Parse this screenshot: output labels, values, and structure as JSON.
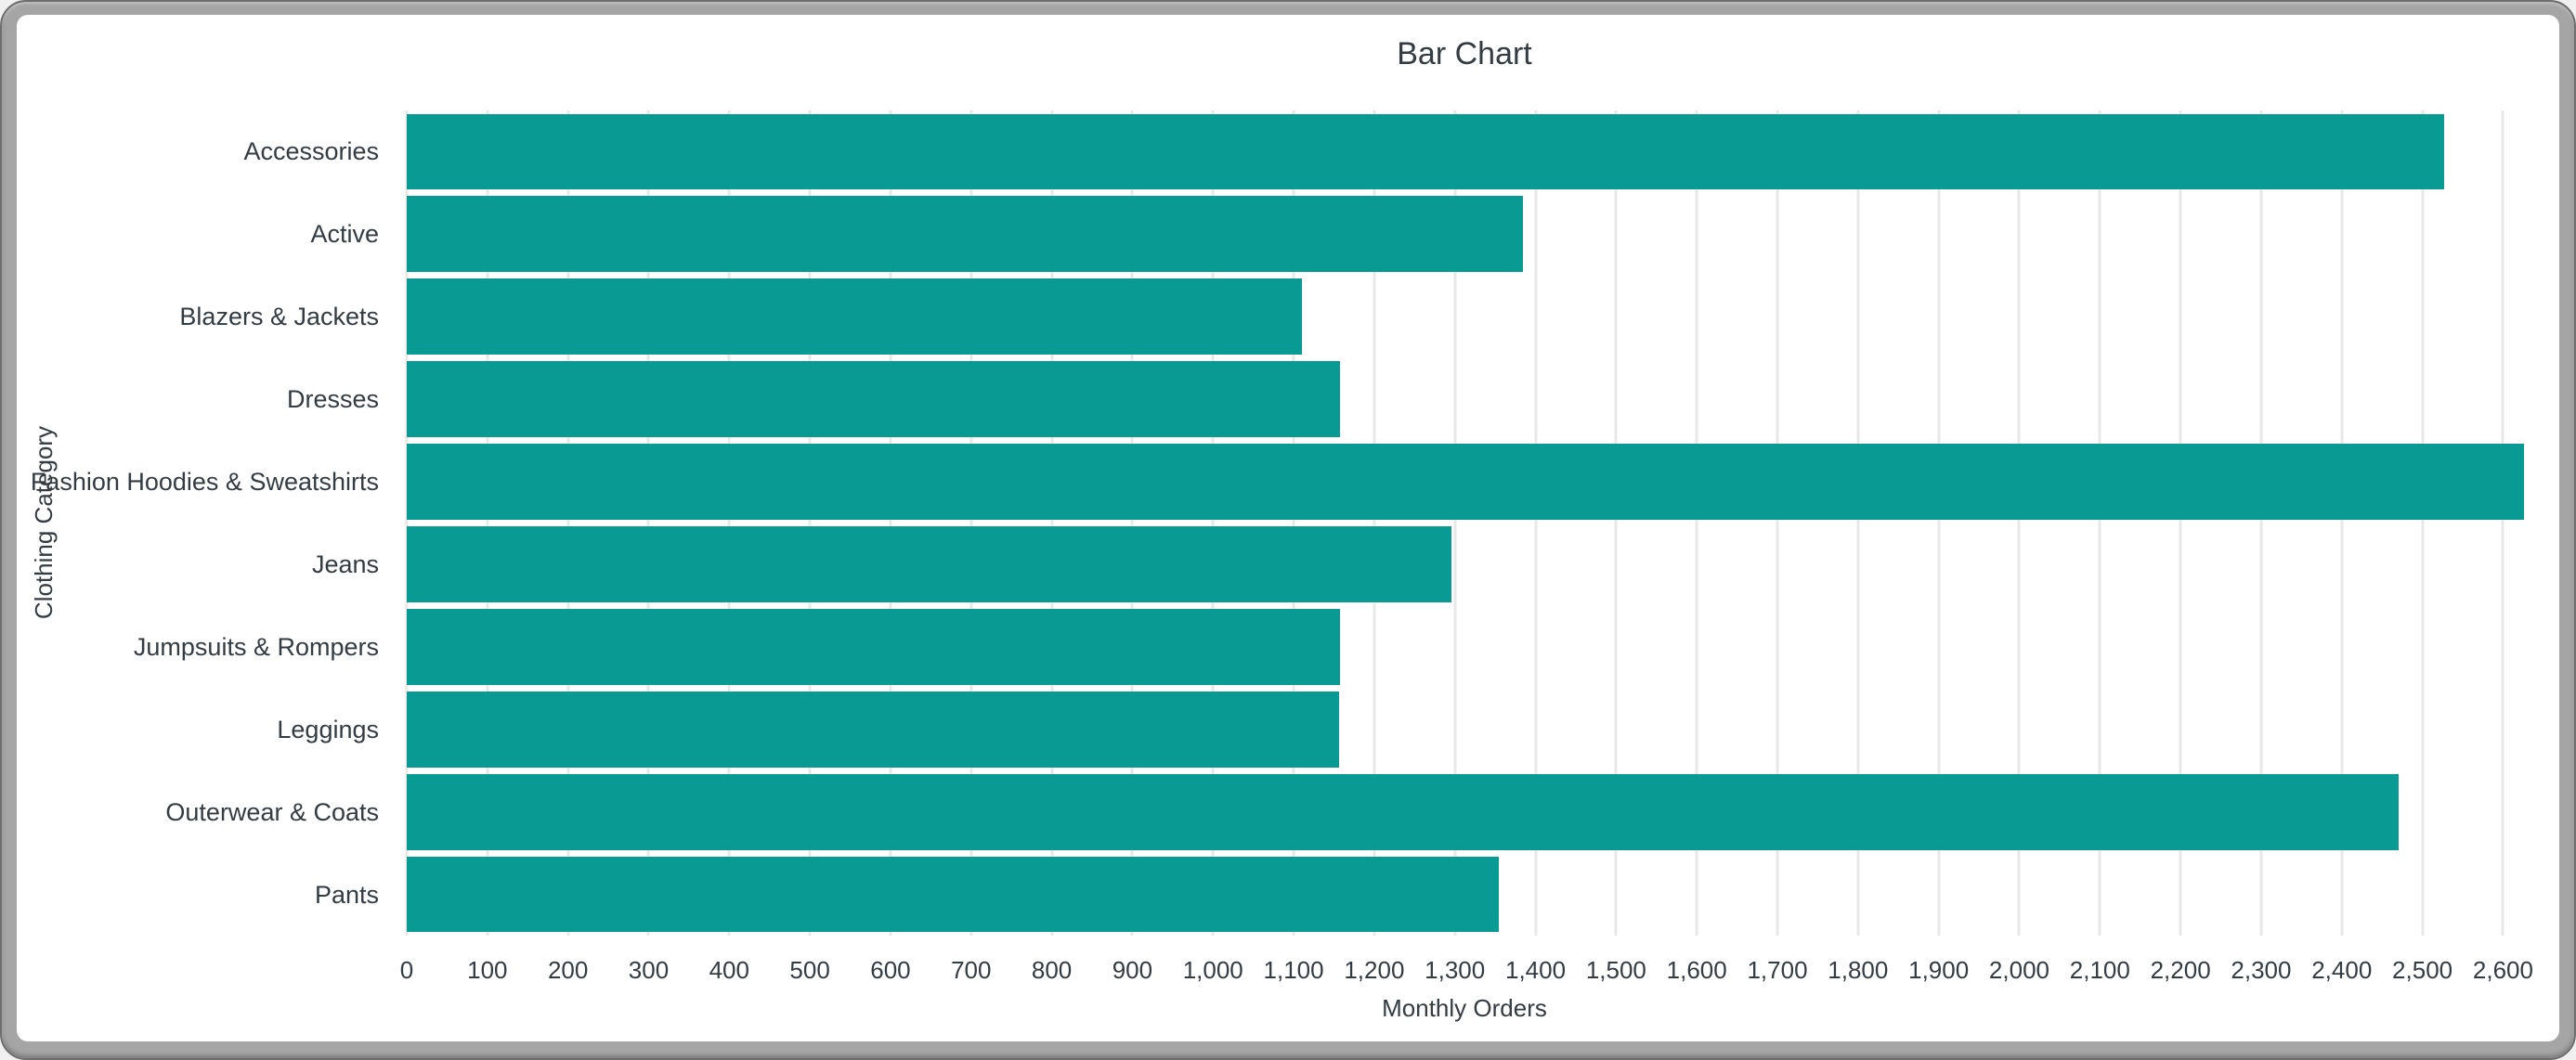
{
  "window": {
    "frame_color": "#a5a5a5",
    "edge_color": "#6e6e6e",
    "content_bg": "#ffffff"
  },
  "chart_data": {
    "type": "bar",
    "orientation": "horizontal",
    "title": "Bar Chart",
    "xlabel": "Monthly Orders",
    "ylabel": "Clothing Category",
    "categories": [
      "Accessories",
      "Active",
      "Blazers & Jackets",
      "Dresses",
      "Fashion Hoodies & Sweatshirts",
      "Jeans",
      "Jumpsuits & Rompers",
      "Leggings",
      "Outerwear & Coats",
      "Pants"
    ],
    "values": [
      2527,
      1384,
      1110,
      1158,
      2626,
      1296,
      1158,
      1156,
      2471,
      1354
    ],
    "xlim": [
      0,
      2626
    ],
    "xticks": {
      "start": 0,
      "end": 2600,
      "step": 100
    },
    "grid": true,
    "legend": "none",
    "bar_color": "#0a9a94",
    "text_color": "#333b43",
    "grid_color": "#e8e8e8"
  }
}
